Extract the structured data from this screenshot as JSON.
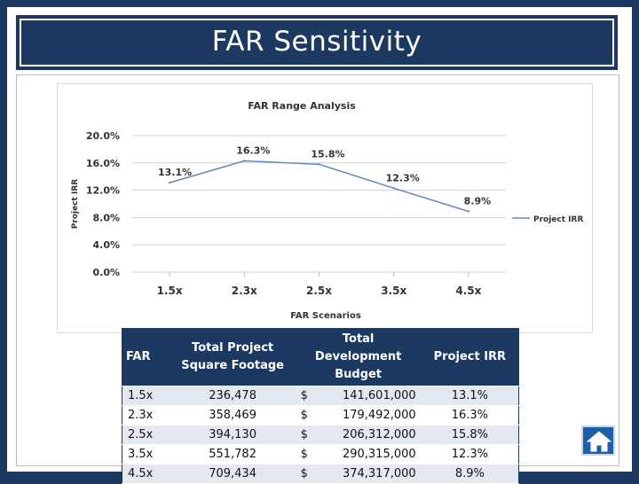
{
  "slide": {
    "title": "FAR  Sensitivity"
  },
  "chart_data": {
    "type": "line",
    "title": "FAR Range Analysis",
    "xlabel": "FAR Scenarios",
    "ylabel": "Project IRR",
    "categories": [
      "1.5x",
      "2.3x",
      "2.5x",
      "3.5x",
      "4.5x"
    ],
    "series": [
      {
        "name": "Project IRR",
        "values": [
          13.1,
          16.3,
          15.8,
          12.3,
          8.9
        ],
        "labels": [
          "13.1%",
          "16.3%",
          "15.8%",
          "12.3%",
          "8.9%"
        ]
      }
    ],
    "yticks": [
      "0.0%",
      "4.0%",
      "8.0%",
      "12.0%",
      "16.0%",
      "20.0%"
    ],
    "ylim": [
      0,
      20
    ],
    "grid": true,
    "legend": "right",
    "line_color": "#5b8bc2"
  },
  "table": {
    "headers": {
      "far": "FAR",
      "sqft": "Total Project Square Footage",
      "budget": "Total Development Budget",
      "irr": "Project IRR"
    },
    "rows": [
      {
        "far": "1.5x",
        "sqft": "236,478",
        "dollar": "$",
        "budget": "141,601,000",
        "irr": "13.1%"
      },
      {
        "far": "2.3x",
        "sqft": "358,469",
        "dollar": "$",
        "budget": "179,492,000",
        "irr": "16.3%"
      },
      {
        "far": "2.5x",
        "sqft": "394,130",
        "dollar": "$",
        "budget": "206,312,000",
        "irr": "15.8%"
      },
      {
        "far": "3.5x",
        "sqft": "551,782",
        "dollar": "$",
        "budget": "290,315,000",
        "irr": "12.3%"
      },
      {
        "far": "4.5x",
        "sqft": "709,434",
        "dollar": "$",
        "budget": "374,317,000",
        "irr": "8.9%"
      }
    ],
    "row_colors": [
      "#e4e9f1",
      "#ffffff"
    ]
  },
  "colors": {
    "navy": "#1c3a61",
    "home_button": "#1f5fa8"
  },
  "icons": {
    "home": "home-icon"
  }
}
